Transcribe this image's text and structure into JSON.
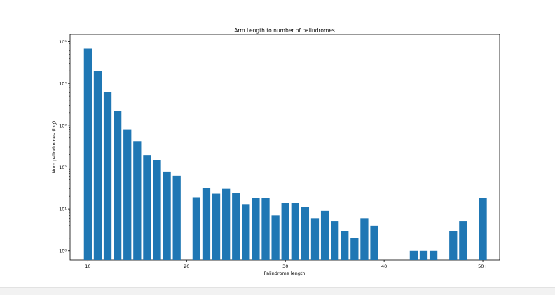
{
  "chart_data": {
    "type": "bar",
    "title": "Arm Length to number of palindromes",
    "xlabel": "Palindrome length",
    "ylabel": "Num palindromes (log)",
    "yscale": "log",
    "x": [
      10,
      11,
      12,
      13,
      14,
      15,
      16,
      17,
      18,
      19,
      21,
      22,
      23,
      24,
      25,
      26,
      27,
      28,
      29,
      30,
      31,
      32,
      33,
      34,
      35,
      36,
      37,
      38,
      39,
      43,
      44,
      45,
      47,
      48,
      50
    ],
    "values": [
      68000,
      20000,
      6300,
      2150,
      800,
      420,
      195,
      145,
      78,
      62,
      19,
      31,
      23,
      30,
      24,
      13,
      18,
      18,
      7,
      14,
      14,
      11,
      6,
      9,
      5,
      3,
      2,
      6,
      4,
      1,
      1,
      1,
      3,
      5,
      18
    ],
    "xlim": [
      8.2,
      51.7
    ],
    "ylim": [
      0.6,
      150000
    ],
    "xticks": [
      10,
      20,
      30,
      40,
      50
    ],
    "xtick_labels": [
      "10",
      "20",
      "30",
      "40",
      "50+"
    ],
    "yticks": [
      1,
      10,
      100,
      1000,
      10000,
      100000
    ],
    "ytick_labels": [
      "10⁰",
      "10¹",
      "10²",
      "10³",
      "10⁴",
      "10⁵"
    ],
    "bar_color": "#1f77b4",
    "grid": false,
    "legend": false
  }
}
